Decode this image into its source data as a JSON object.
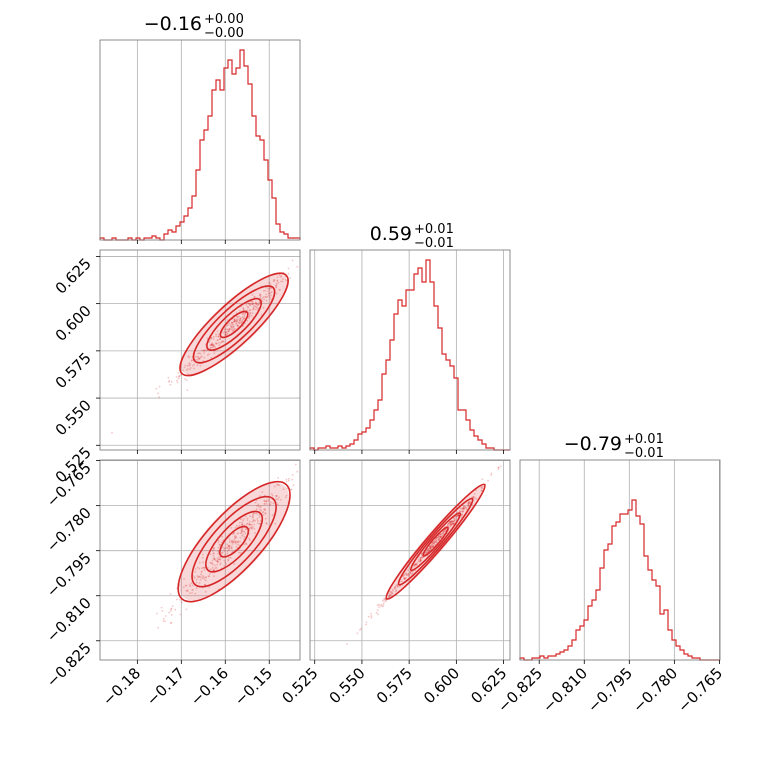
{
  "chart_data": {
    "type": "corner",
    "color": "#d62728",
    "grid": true,
    "titles": [
      {
        "value": "−0.16",
        "upper": "+0.00",
        "lower": "−0.00"
      },
      {
        "value": "0.59",
        "upper": "+0.01",
        "lower": "−0.01"
      },
      {
        "value": "−0.79",
        "upper": "+0.01",
        "lower": "−0.01"
      }
    ],
    "params": [
      {
        "range": [
          -0.1885,
          -0.143
        ],
        "ticks": [
          -0.18,
          -0.17,
          -0.16,
          -0.15
        ],
        "tick_labels": [
          "−0.18",
          "−0.17",
          "−0.16",
          "−0.15"
        ]
      },
      {
        "range": [
          0.5225,
          0.6284
        ],
        "ticks": [
          0.525,
          0.55,
          0.575,
          0.6,
          0.625
        ],
        "tick_labels": [
          "0.525",
          "0.550",
          "0.575",
          "0.600",
          "0.625"
        ]
      },
      {
        "range": [
          -0.8314,
          -0.7648
        ],
        "ticks": [
          -0.825,
          -0.81,
          -0.795,
          -0.78,
          -0.765
        ],
        "tick_labels": [
          "−0.825",
          "−0.810",
          "−0.795",
          "−0.780",
          "−0.765"
        ]
      }
    ],
    "histograms": [
      [
        0.01,
        0,
        0,
        0.01,
        0,
        0,
        0,
        0.01,
        0,
        0.01,
        0,
        0.01,
        0.01,
        0.02,
        0.01,
        0,
        0.03,
        0.05,
        0.04,
        0.07,
        0.09,
        0.12,
        0.16,
        0.22,
        0.35,
        0.5,
        0.55,
        0.62,
        0.75,
        0.8,
        0.75,
        0.86,
        0.9,
        0.83,
        0.86,
        0.95,
        0.87,
        0.78,
        0.62,
        0.52,
        0.5,
        0.4,
        0.3,
        0.21,
        0.08,
        0.04,
        0.03,
        0.01,
        0.01,
        0.01
      ],
      [
        0.01,
        0,
        0.01,
        0.01,
        0.02,
        0.01,
        0.01,
        0.02,
        0.01,
        0.02,
        0.03,
        0.05,
        0.08,
        0.09,
        0.11,
        0.15,
        0.2,
        0.25,
        0.38,
        0.45,
        0.55,
        0.68,
        0.75,
        0.72,
        0.8,
        0.8,
        0.88,
        0.91,
        0.84,
        0.95,
        0.84,
        0.72,
        0.61,
        0.48,
        0.45,
        0.42,
        0.36,
        0.2,
        0.2,
        0.15,
        0.1,
        0.07,
        0.05,
        0.03,
        0.01,
        0.01,
        0,
        0,
        0,
        0
      ],
      [
        0.01,
        0,
        0,
        0.01,
        0.01,
        0.02,
        0.01,
        0.02,
        0.02,
        0.03,
        0.04,
        0.05,
        0.07,
        0.1,
        0.15,
        0.17,
        0.2,
        0.27,
        0.3,
        0.35,
        0.46,
        0.55,
        0.58,
        0.67,
        0.69,
        0.73,
        0.73,
        0.75,
        0.8,
        0.72,
        0.68,
        0.52,
        0.45,
        0.4,
        0.37,
        0.23,
        0.25,
        0.15,
        0.1,
        0.07,
        0.05,
        0.03,
        0.02,
        0.01,
        0.01,
        0,
        0,
        0,
        0,
        0
      ]
    ],
    "correlations": {
      "1,0": 0.97,
      "2,0": 0.95,
      "2,1": 0.996
    }
  }
}
